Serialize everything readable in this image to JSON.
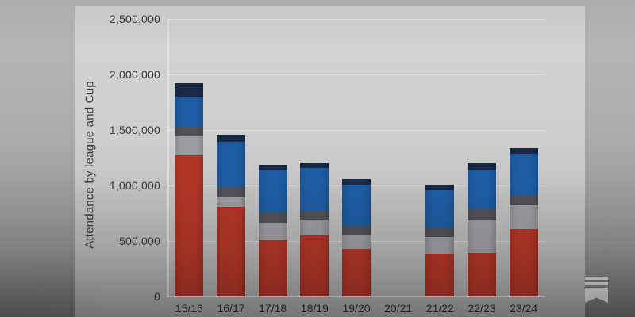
{
  "chart_data": {
    "type": "bar",
    "stacked": true,
    "title": "",
    "xlabel": "",
    "ylabel": "Attendance by league and Cup",
    "categories": [
      "15/16",
      "16/17",
      "17/18",
      "18/19",
      "19/20",
      "20/21",
      "21/22",
      "22/23",
      "23/24"
    ],
    "series": [
      {
        "name": "red",
        "color": "#b23628",
        "values": [
          1270000,
          805000,
          510000,
          550000,
          425000,
          0,
          385000,
          390000,
          605000
        ]
      },
      {
        "name": "light-gray",
        "color": "#9b9c9f",
        "values": [
          170000,
          90000,
          150000,
          140000,
          130000,
          0,
          150000,
          295000,
          220000
        ]
      },
      {
        "name": "dark-gray",
        "color": "#505257",
        "values": [
          90000,
          90000,
          100000,
          80000,
          80000,
          0,
          80000,
          100000,
          90000
        ]
      },
      {
        "name": "blue",
        "color": "#1e5ca3",
        "values": [
          270000,
          405000,
          385000,
          385000,
          370000,
          0,
          345000,
          360000,
          370000
        ]
      },
      {
        "name": "navy",
        "color": "#1a2a45",
        "values": [
          120000,
          65000,
          40000,
          45000,
          50000,
          0,
          50000,
          55000,
          50000
        ]
      }
    ],
    "ylim": [
      0,
      2500000
    ],
    "yticks": [
      {
        "value": 0,
        "label": "0"
      },
      {
        "value": 500000,
        "label": "500,000"
      },
      {
        "value": 1000000,
        "label": "1,000,000"
      },
      {
        "value": 1500000,
        "label": "1,500,000"
      },
      {
        "value": 2000000,
        "label": "2,000,000"
      },
      {
        "value": 2500000,
        "label": "2,500,000"
      }
    ],
    "grid": "horizontal-dotted",
    "legend": "none"
  },
  "watermark": {
    "icon": "substack-logo"
  }
}
